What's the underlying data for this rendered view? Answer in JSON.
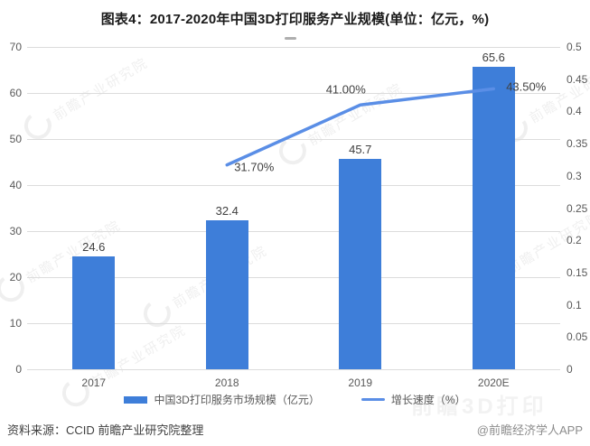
{
  "title": "图表4：2017-2020年中国3D打印服务产业规模(单位：亿元，%)",
  "colors": {
    "bar": "#3e7ed9",
    "line": "#5a8ee6",
    "grid": "#dcdcdc",
    "axis_text": "#595959",
    "data_label_text": "#404040",
    "title_text": "#1a1a1a",
    "credit_text": "#8c8c8c"
  },
  "chart_data": {
    "type": "bar",
    "categories": [
      "2017",
      "2018",
      "2019",
      "2020E"
    ],
    "series": [
      {
        "name": "中国3D打印服务市场规模（亿元）",
        "type": "bar",
        "axis": "left",
        "values": [
          24.6,
          32.4,
          45.7,
          65.6
        ],
        "labels": [
          "24.6",
          "32.4",
          "45.7",
          "65.6"
        ]
      },
      {
        "name": "增长速度（%）",
        "type": "line",
        "axis": "right",
        "values": [
          null,
          31.7,
          41.0,
          43.5
        ],
        "labels": [
          null,
          "31.70%",
          "41.00%",
          "43.50%"
        ]
      }
    ],
    "left_axis": {
      "ticks": [
        "0",
        "10",
        "20",
        "30",
        "40",
        "50",
        "60",
        "70"
      ],
      "range": [
        0,
        70
      ]
    },
    "right_axis": {
      "ticks": [
        "0",
        "0.05",
        "0.1",
        "0.15",
        "0.2",
        "0.25",
        "0.3",
        "0.35",
        "0.4",
        "0.45",
        "0.5"
      ],
      "range": [
        0,
        0.5
      ]
    },
    "grid": true,
    "legend_position": "bottom",
    "title": "图表4：2017-2020年中国3D打印服务产业规模(单位：亿元，%)"
  },
  "legend": [
    {
      "label": "中国3D打印服务市场规模（亿元）",
      "swatch": "bar"
    },
    {
      "label": "增长速度（%）",
      "swatch": "line"
    }
  ],
  "source": "资料来源：CCID 前瞻产业研究院整理",
  "credit": "@前瞻经济学人APP",
  "watermarks": {
    "diagonal_text": "前瞻产业研究院",
    "legend_bg_text": "前瞻3D打印"
  }
}
